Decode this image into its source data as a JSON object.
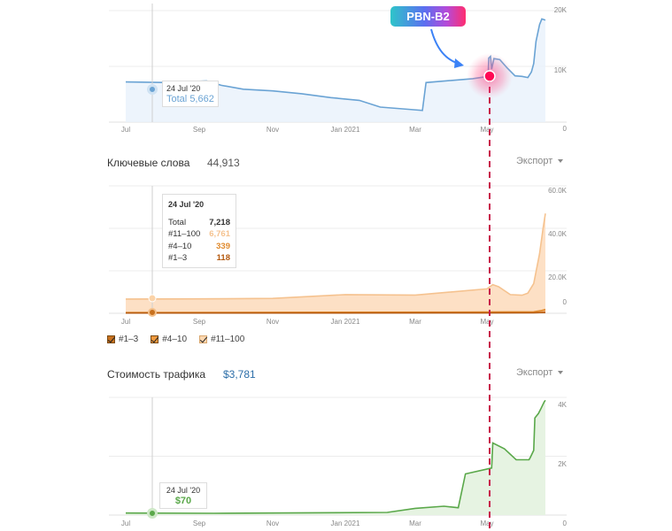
{
  "annotation": {
    "badge_label": "PBN-B2"
  },
  "chart_data": [
    {
      "type": "area",
      "x_ticks": [
        "Jul",
        "Sep",
        "Nov",
        "Jan 2021",
        "Mar",
        "May"
      ],
      "y_ticks": [
        "20K",
        "10K",
        "0"
      ],
      "ylim": [
        0,
        20000
      ],
      "series": [
        {
          "name": "Total",
          "color": "#6aa3d4",
          "points": [
            [
              0,
              7200
            ],
            [
              0.6,
              7100
            ],
            [
              1.1,
              7400
            ],
            [
              1.3,
              6600
            ],
            [
              1.6,
              5900
            ],
            [
              2.0,
              5600
            ],
            [
              2.4,
              5100
            ],
            [
              2.8,
              4400
            ],
            [
              3.2,
              3900
            ],
            [
              3.5,
              2700
            ],
            [
              3.9,
              2300
            ],
            [
              4.1,
              2100
            ],
            [
              4.15,
              7100
            ],
            [
              4.8,
              7800
            ],
            [
              5.1,
              8200
            ],
            [
              5.15,
              11500
            ],
            [
              5.3,
              11800
            ],
            [
              5.4,
              9500
            ],
            [
              5.6,
              11400
            ],
            [
              6.1,
              11200
            ],
            [
              6.7,
              9800
            ],
            [
              7.4,
              8300
            ],
            [
              8.0,
              8200
            ],
            [
              8.5,
              8000
            ],
            [
              8.8,
              9000
            ],
            [
              9.0,
              10500
            ],
            [
              9.2,
              14500
            ],
            [
              9.5,
              17500
            ],
            [
              9.7,
              18500
            ],
            [
              10.0,
              18300
            ]
          ]
        }
      ],
      "tooltip": {
        "date": "24 Jul '20",
        "label": "Total",
        "value": "5,662"
      }
    },
    {
      "type": "area",
      "title": "Ключевые слова",
      "count": "44,913",
      "export_label": "Экспорт",
      "x_ticks": [
        "Jul",
        "Sep",
        "Nov",
        "Jan 2021",
        "Mar",
        "May"
      ],
      "y_ticks": [
        "60.0K",
        "40.0K",
        "20.0K",
        "0"
      ],
      "ylim": [
        0,
        60000
      ],
      "legend": [
        "#1–3",
        "#4–10",
        "#11–100"
      ],
      "series": [
        {
          "name": "#11–100",
          "color": "#f5c28f",
          "fill": "#fde0c5",
          "points": [
            [
              0,
              6700
            ],
            [
              1,
              6800
            ],
            [
              2,
              7000
            ],
            [
              3,
              8800
            ],
            [
              4,
              8600
            ],
            [
              5,
              11500
            ],
            [
              5.5,
              13500
            ],
            [
              6,
              12500
            ],
            [
              7,
              8800
            ],
            [
              8,
              8500
            ],
            [
              8.5,
              9500
            ],
            [
              9,
              14000
            ],
            [
              9.5,
              28000
            ],
            [
              9.8,
              40000
            ],
            [
              10,
              47000
            ]
          ]
        },
        {
          "name": "#4–10",
          "color": "#e08a2c",
          "fill": "#f3b070",
          "points": [
            [
              0,
              339
            ],
            [
              5,
              600
            ],
            [
              9,
              700
            ],
            [
              9.6,
              1200
            ],
            [
              10,
              1800
            ]
          ]
        },
        {
          "name": "#1–3",
          "color": "#b55a10",
          "fill": "#c8711e",
          "points": [
            [
              0,
              118
            ],
            [
              5,
              150
            ],
            [
              9,
              200
            ],
            [
              10,
              400
            ]
          ]
        }
      ],
      "tooltip": {
        "date": "24 Jul '20",
        "rows": [
          {
            "label": "Total",
            "value": "7,218"
          },
          {
            "label": "#11–100",
            "value": "6,761"
          },
          {
            "label": "#4–10",
            "value": "339"
          },
          {
            "label": "#1–3",
            "value": "118"
          }
        ]
      }
    },
    {
      "type": "area",
      "title": "Стоимость трафика",
      "count": "$3,781",
      "export_label": "Экспорт",
      "x_ticks": [
        "Jul",
        "Sep",
        "Nov",
        "Jan 2021",
        "Mar",
        "May"
      ],
      "y_ticks": [
        "4K",
        "2K",
        "0"
      ],
      "ylim": [
        0,
        4000
      ],
      "series": [
        {
          "name": "Traffic cost",
          "color": "#5aa84a",
          "fill": "#e6f3e2",
          "points": [
            [
              0,
              70
            ],
            [
              1.2,
              60
            ],
            [
              3.6,
              90
            ],
            [
              4.0,
              230
            ],
            [
              4.4,
              300
            ],
            [
              4.6,
              250
            ],
            [
              4.7,
              1400
            ],
            [
              5.4,
              1600
            ],
            [
              5.5,
              2450
            ],
            [
              6.5,
              2250
            ],
            [
              7.5,
              1880
            ],
            [
              8.6,
              1880
            ],
            [
              8.7,
              1950
            ],
            [
              9.0,
              2200
            ],
            [
              9.1,
              3300
            ],
            [
              9.4,
              3450
            ],
            [
              9.6,
              3600
            ],
            [
              9.9,
              3850
            ],
            [
              10,
              3900
            ]
          ]
        }
      ],
      "tooltip": {
        "date": "24 Jul '20",
        "value": "$70"
      }
    }
  ]
}
